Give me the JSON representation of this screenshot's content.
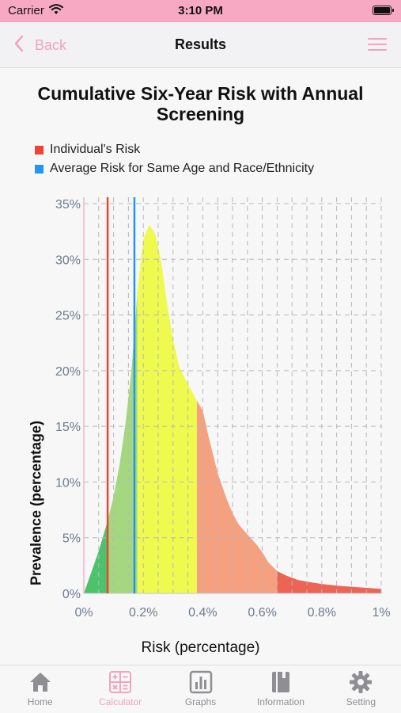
{
  "status_bar": {
    "carrier": "Carrier",
    "time": "3:10 PM"
  },
  "nav": {
    "back_label": "Back",
    "title": "Results"
  },
  "legend": [
    {
      "label": "Individual's Risk",
      "color": "#ee4433"
    },
    {
      "label": "Average Risk for Same Age and Race/Ethnicity",
      "color": "#2196f3"
    }
  ],
  "chart_data": {
    "type": "area",
    "title": "Cumulative Six-Year Risk with Annual Screening",
    "xlabel": "Risk (percentage)",
    "ylabel": "Prevalence (percentage)",
    "x_ticks": [
      "0%",
      "0.2%",
      "0.4%",
      "0.6%",
      "0.8%",
      "1%"
    ],
    "y_ticks": [
      "0%",
      "5%",
      "10%",
      "15%",
      "20%",
      "25%",
      "30%",
      "35%"
    ],
    "xlim": [
      0,
      1
    ],
    "ylim": [
      0,
      35
    ],
    "grid": true,
    "curve": {
      "x": [
        0,
        0.02,
        0.05,
        0.08,
        0.1,
        0.12,
        0.14,
        0.16,
        0.18,
        0.2,
        0.22,
        0.24,
        0.26,
        0.28,
        0.3,
        0.32,
        0.34,
        0.36,
        0.38,
        0.4,
        0.42,
        0.45,
        0.48,
        0.5,
        0.52,
        0.55,
        0.58,
        0.6,
        0.62,
        0.65,
        0.68,
        0.7,
        0.72,
        0.75,
        0.8,
        0.85,
        0.9,
        0.95,
        1.0
      ],
      "y": [
        0,
        1.5,
        3.8,
        6.5,
        8.7,
        11.5,
        15.2,
        20.0,
        27.0,
        31.8,
        33.1,
        32.3,
        29.8,
        26.0,
        22.8,
        20.4,
        19.3,
        18.3,
        17.3,
        16.4,
        14.0,
        10.8,
        8.5,
        7.2,
        6.2,
        5.3,
        4.4,
        3.7,
        2.8,
        2.0,
        1.6,
        1.4,
        1.2,
        1.05,
        0.85,
        0.7,
        0.6,
        0.5,
        0.4
      ]
    },
    "bands": [
      {
        "from": 0,
        "to": 0.08,
        "color": "#4cc26b"
      },
      {
        "from": 0.08,
        "to": 0.18,
        "color": "#a4d77e"
      },
      {
        "from": 0.18,
        "to": 0.38,
        "color": "#eefa4e"
      },
      {
        "from": 0.38,
        "to": 0.65,
        "color": "#f5a07e"
      },
      {
        "from": 0.65,
        "to": 1.0,
        "color": "#ec6454"
      }
    ],
    "individual_risk": 0.08,
    "average_risk": 0.17
  },
  "tabs": [
    {
      "label": "Home",
      "icon": "home-icon",
      "active": false
    },
    {
      "label": "Calculator",
      "icon": "calculator-icon",
      "active": true
    },
    {
      "label": "Graphs",
      "icon": "graphs-icon",
      "active": false
    },
    {
      "label": "Information",
      "icon": "information-icon",
      "active": false
    },
    {
      "label": "Setting",
      "icon": "setting-icon",
      "active": false
    }
  ]
}
